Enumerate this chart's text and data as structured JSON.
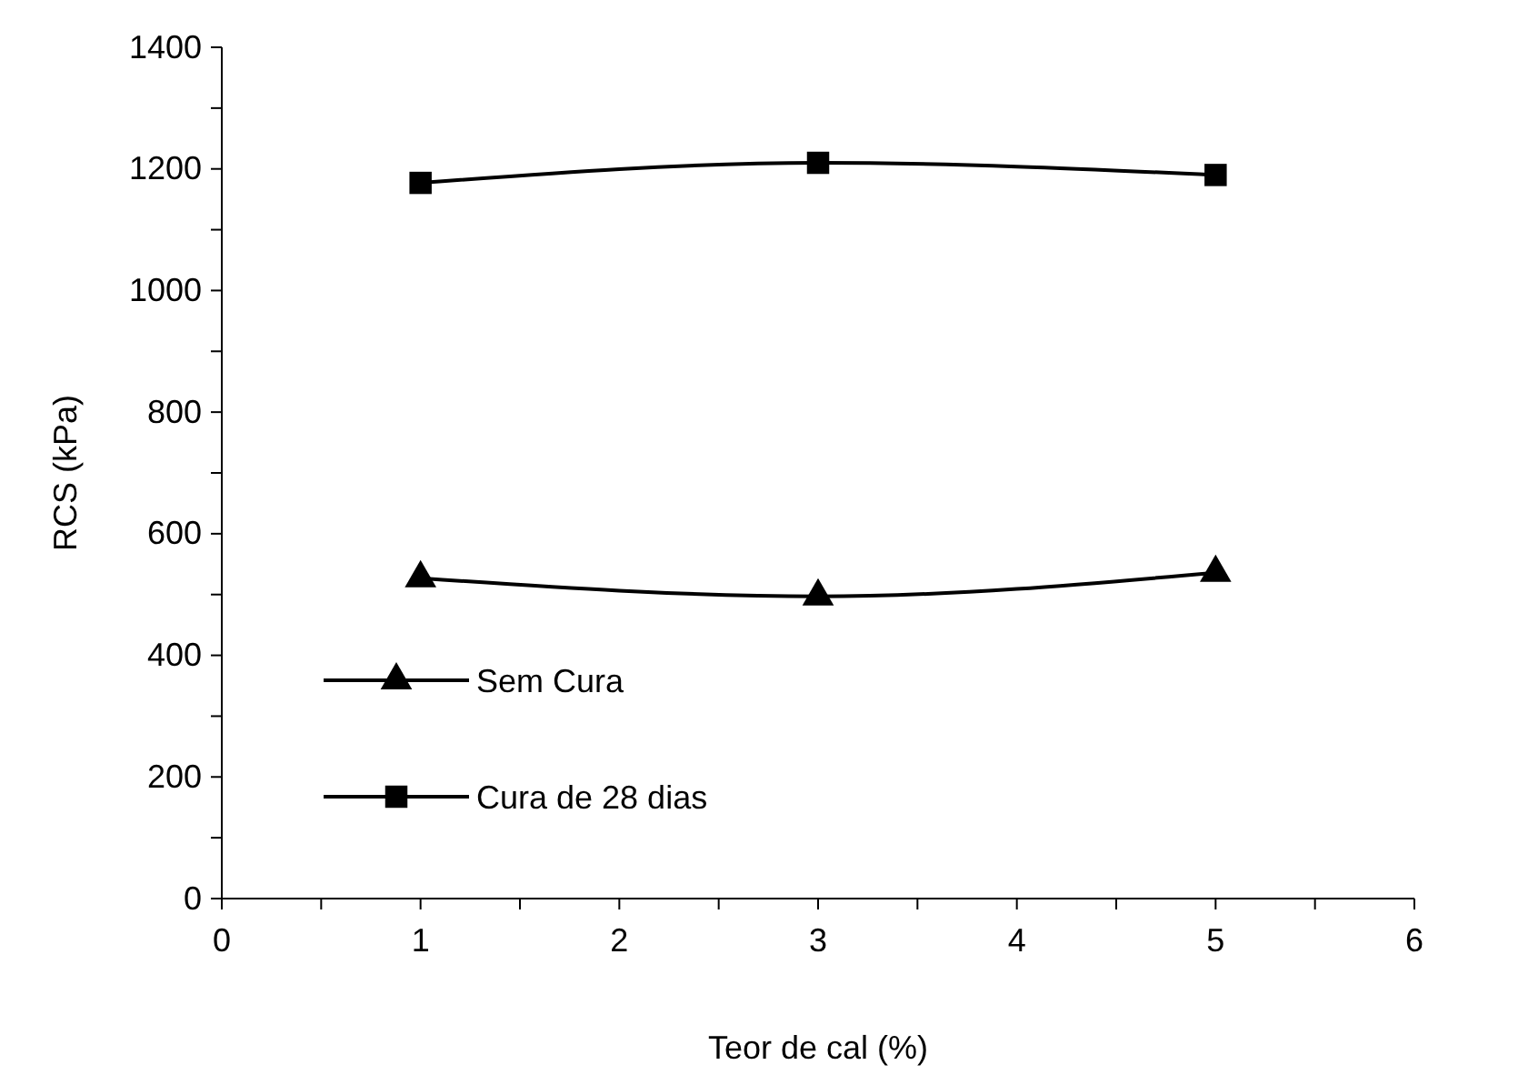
{
  "chart_data": {
    "type": "line",
    "xlabel": "Teor de cal (%)",
    "ylabel": "RCS (kPa)",
    "x": [
      1,
      3,
      5
    ],
    "series": [
      {
        "name": "Sem Cura",
        "color": "#000000",
        "marker": "triangle",
        "values": [
          527,
          497,
          536
        ]
      },
      {
        "name": "Cura de 28 dias",
        "color": "#000000",
        "marker": "square",
        "values": [
          1177,
          1210,
          1190
        ]
      }
    ],
    "xlim": [
      0,
      6
    ],
    "xticks": [
      0,
      {
        "value": 0.5,
        "label": null
      },
      1,
      {
        "value": 1.5,
        "label": null
      },
      2,
      {
        "value": 2.5,
        "label": null
      },
      3,
      {
        "value": 3.5,
        "label": null
      },
      4,
      {
        "value": 4.5,
        "label": null
      },
      5,
      {
        "value": 5.5,
        "label": null
      },
      6
    ],
    "ylim": [
      0,
      1400
    ],
    "yticks": [
      0,
      {
        "value": 100,
        "label": null
      },
      200,
      {
        "value": 300,
        "label": null
      },
      400,
      {
        "value": 500,
        "label": null
      },
      600,
      {
        "value": 700,
        "label": null
      },
      800,
      {
        "value": 900,
        "label": null
      },
      1000,
      {
        "value": 1100,
        "label": null
      },
      1200,
      {
        "value": 1300,
        "label": null
      },
      1400
    ],
    "grid": false,
    "legend": "bottom left",
    "line_style": "solid"
  }
}
